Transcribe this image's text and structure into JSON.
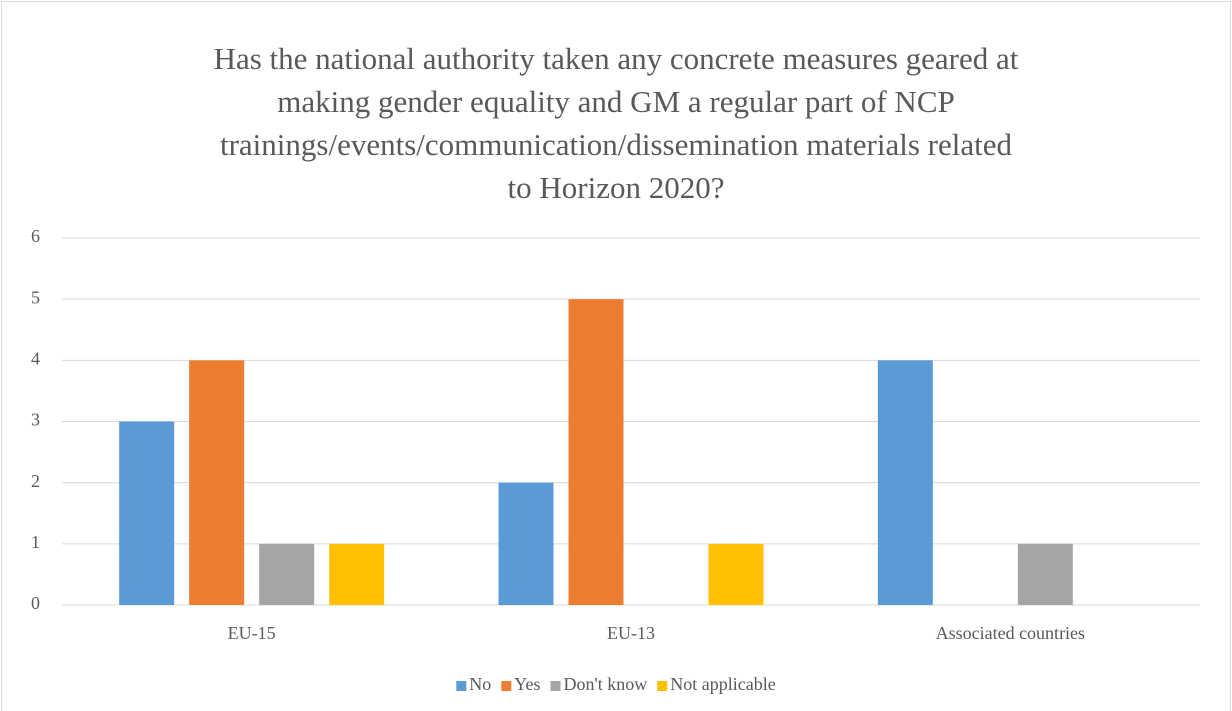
{
  "chart_data": {
    "type": "bar",
    "title": [
      "Has the national authority taken any concrete measures geared at",
      "making gender equality and GM a regular part of NCP",
      "trainings/events/communication/dissemination materials related",
      "to Horizon 2020?"
    ],
    "categories": [
      "EU-15",
      "EU-13",
      "Associated countries"
    ],
    "series": [
      {
        "name": "No",
        "color": "#5b9bd5",
        "values": [
          3,
          2,
          4
        ]
      },
      {
        "name": "Yes",
        "color": "#ed7d31",
        "values": [
          4,
          5,
          0
        ]
      },
      {
        "name": "Don't know",
        "color": "#a5a5a5",
        "values": [
          1,
          0,
          1
        ]
      },
      {
        "name": "Not applicable",
        "color": "#ffc000",
        "values": [
          1,
          1,
          0
        ]
      }
    ],
    "ylim": [
      0,
      6
    ],
    "yticks": [
      0,
      1,
      2,
      3,
      4,
      5,
      6
    ],
    "grid": true,
    "legend": "bottom"
  }
}
